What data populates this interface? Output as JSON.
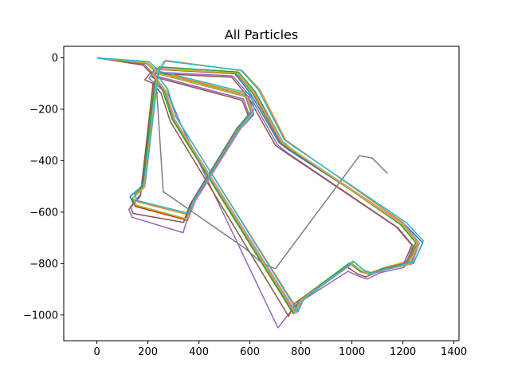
{
  "chart_data": {
    "type": "line",
    "title": "All Particles",
    "xlabel": "",
    "ylabel": "",
    "xlim": [
      -130,
      1420
    ],
    "ylim": [
      -1100,
      45
    ],
    "xticks": [
      0,
      200,
      400,
      600,
      800,
      1000,
      1200,
      1400
    ],
    "xtick_labels": [
      "0",
      "200",
      "400",
      "600",
      "800",
      "1000",
      "1200",
      "1400"
    ],
    "yticks": [
      0,
      -200,
      -400,
      -600,
      -800,
      -1000
    ],
    "ytick_labels": [
      "0",
      "−200",
      "−400",
      "−600",
      "−800",
      "−1000"
    ],
    "grid": false,
    "legend": "none",
    "colors": [
      "#1f77b4",
      "#ff7f0e",
      "#2ca02c",
      "#d62728",
      "#9467bd",
      "#8c564b",
      "#e377c2",
      "#7f7f7f",
      "#bcbd22",
      "#17becf"
    ],
    "series": [
      {
        "x": [
          0,
          200,
          238,
          595,
          615,
          560,
          380,
          352,
          145,
          130,
          175,
          232,
          212,
          228,
          540,
          600,
          715,
          755,
          1210,
          1278,
          1240,
          1140,
          1070,
          1040,
          1000,
          800,
          775,
          300,
          265,
          232
        ],
        "y": [
          0,
          -20,
          -60,
          -150,
          -220,
          -280,
          -560,
          -630,
          -570,
          -540,
          -500,
          -85,
          -70,
          -40,
          -60,
          -135,
          -330,
          -360,
          -650,
          -720,
          -800,
          -820,
          -840,
          -830,
          -800,
          -940,
          -990,
          -240,
          -130,
          -85
        ]
      },
      {
        "x": [
          0,
          200,
          240,
          580,
          610,
          555,
          385,
          360,
          160,
          150,
          185,
          235,
          250,
          270,
          570,
          640,
          740,
          770,
          1200,
          1255,
          1225,
          1130,
          1075,
          1045,
          1005,
          810,
          790,
          310,
          275,
          240
        ],
        "y": [
          0,
          -20,
          -55,
          -140,
          -200,
          -270,
          -545,
          -610,
          -560,
          -535,
          -480,
          -70,
          -40,
          -10,
          -50,
          -125,
          -320,
          -340,
          -640,
          -710,
          -790,
          -815,
          -835,
          -825,
          -790,
          -935,
          -985,
          -230,
          -120,
          -70
        ]
      },
      {
        "x": [
          0,
          190,
          235,
          585,
          605,
          548,
          375,
          345,
          148,
          140,
          180,
          228,
          230,
          245,
          555,
          620,
          728,
          760,
          1190,
          1250,
          1215,
          1120,
          1068,
          1035,
          990,
          790,
          770,
          295,
          258,
          228
        ],
        "y": [
          0,
          -18,
          -58,
          -148,
          -210,
          -275,
          -555,
          -625,
          -575,
          -548,
          -500,
          -80,
          -55,
          -35,
          -55,
          -130,
          -325,
          -352,
          -648,
          -718,
          -798,
          -820,
          -840,
          -832,
          -798,
          -945,
          -995,
          -238,
          -128,
          -80
        ]
      },
      {
        "x": [
          0,
          195,
          242,
          590,
          612,
          558,
          382,
          355,
          152,
          142,
          183,
          236,
          220,
          238,
          548,
          612,
          722,
          762,
          1205,
          1262,
          1232,
          1138,
          1072,
          1042,
          998,
          802,
          778,
          302,
          268,
          236
        ],
        "y": [
          0,
          -22,
          -62,
          -152,
          -215,
          -282,
          -562,
          -632,
          -578,
          -545,
          -505,
          -88,
          -65,
          -45,
          -62,
          -138,
          -332,
          -358,
          -652,
          -722,
          -802,
          -822,
          -842,
          -834,
          -802,
          -942,
          -992,
          -242,
          -132,
          -88
        ]
      },
      {
        "x": [
          0,
          185,
          230,
          575,
          598,
          540,
          368,
          338,
          138,
          125,
          170,
          222,
          205,
          220,
          532,
          598,
          708,
          748,
          1180,
          1240,
          1205,
          1112,
          1060,
          1028,
          985,
          780,
          710,
          330,
          282,
          222
        ],
        "y": [
          0,
          -25,
          -70,
          -160,
          -225,
          -290,
          -580,
          -680,
          -620,
          -590,
          -540,
          -95,
          -80,
          -55,
          -70,
          -145,
          -338,
          -370,
          -660,
          -730,
          -815,
          -835,
          -860,
          -850,
          -830,
          -960,
          -1050,
          -260,
          -145,
          -95
        ]
      },
      {
        "x": [
          0,
          180,
          228,
          570,
          595,
          538,
          365,
          340,
          142,
          132,
          172,
          220,
          188,
          208,
          528,
          592,
          700,
          740,
          1175,
          1235,
          1200,
          1105,
          1055,
          1025,
          980,
          775,
          752,
          288,
          252,
          220
        ],
        "y": [
          0,
          -28,
          -75,
          -165,
          -230,
          -295,
          -570,
          -640,
          -605,
          -580,
          -530,
          -100,
          -85,
          -60,
          -75,
          -150,
          -340,
          -368,
          -658,
          -728,
          -808,
          -830,
          -852,
          -842,
          -812,
          -955,
          -1005,
          -248,
          -138,
          -100
        ]
      },
      {
        "x": [
          0,
          198,
          244,
          592,
          614,
          562,
          386,
          358,
          155,
          145,
          188,
          238,
          225,
          242,
          552,
          618,
          730,
          765,
          1208,
          1265,
          1236,
          1142,
          1074,
          1044,
          1002,
          806,
          782,
          306,
          272,
          238
        ],
        "y": [
          0,
          -21,
          -61,
          -151,
          -213,
          -279,
          -558,
          -628,
          -574,
          -543,
          -502,
          -86,
          -62,
          -42,
          -60,
          -136,
          -330,
          -356,
          -650,
          -720,
          -800,
          -821,
          -841,
          -833,
          -801,
          -941,
          -991,
          -240,
          -130,
          -86
        ]
      },
      {
        "x": [
          0,
          192,
          236,
          582,
          604,
          550,
          378,
          350,
          150,
          140,
          182,
          232,
          215,
          232,
          545,
          608,
          718,
          758,
          1198,
          1258,
          1222,
          1128,
          1070,
          1040,
          996,
          798,
          774,
          300,
          266,
          232,
          260,
          580,
          650,
          700,
          1000,
          1030,
          1080,
          1140
        ],
        "y": [
          0,
          -19,
          -59,
          -149,
          -212,
          -278,
          -556,
          -626,
          -572,
          -546,
          -503,
          -84,
          -64,
          -44,
          -58,
          -134,
          -328,
          -354,
          -649,
          -719,
          -799,
          -820,
          -840,
          -832,
          -799,
          -943,
          -993,
          -239,
          -129,
          -84,
          -520,
          -740,
          -800,
          -820,
          -420,
          -380,
          -390,
          -450
        ]
      },
      {
        "x": [
          0,
          196,
          239,
          587,
          609,
          553,
          380,
          353,
          153,
          143,
          185,
          234,
          218,
          235,
          550,
          615,
          725,
          763,
          1202,
          1260,
          1228,
          1134,
          1071,
          1041,
          997,
          800,
          776,
          304,
          270,
          234
        ],
        "y": [
          0,
          -20,
          -60,
          -150,
          -214,
          -280,
          -557,
          -627,
          -573,
          -544,
          -501,
          -85,
          -63,
          -43,
          -59,
          -135,
          -329,
          -355,
          -651,
          -721,
          -801,
          -821,
          -839,
          -831,
          -800,
          -942,
          -992,
          -241,
          -131,
          -85
        ]
      },
      {
        "x": [
          0,
          205,
          245,
          600,
          618,
          565,
          390,
          362,
          158,
          148,
          190,
          240,
          248,
          265,
          565,
          632,
          735,
          768,
          1215,
          1280,
          1245,
          1148,
          1078,
          1048,
          1008,
          812,
          788,
          312,
          278,
          240
        ],
        "y": [
          0,
          -15,
          -52,
          -138,
          -198,
          -265,
          -540,
          -605,
          -555,
          -530,
          -478,
          -72,
          -42,
          -12,
          -48,
          -122,
          -318,
          -342,
          -642,
          -712,
          -792,
          -818,
          -838,
          -828,
          -792,
          -938,
          -988,
          -232,
          -122,
          -72
        ]
      }
    ]
  }
}
